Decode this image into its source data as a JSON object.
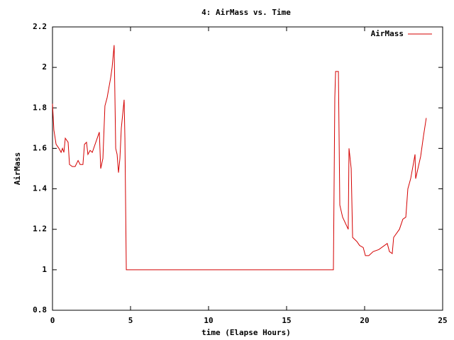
{
  "chart_data": {
    "type": "line",
    "title": "4: AirMass vs. Time",
    "xlabel": "time (Elapse Hours)",
    "ylabel": "AirMass",
    "xlim": [
      0,
      25
    ],
    "xticks": [
      0,
      5,
      10,
      15,
      20,
      25
    ],
    "ylim": [
      0.8,
      2.2
    ],
    "yticks": [
      0.8,
      1,
      1.2,
      1.4,
      1.6,
      1.8,
      2,
      2.2
    ],
    "grid": false,
    "legend": "top-right",
    "series": [
      {
        "name": "AirMass",
        "color": "#d40000",
        "x": [
          0,
          0.09,
          0.23,
          0.41,
          0.55,
          0.64,
          0.73,
          0.82,
          1.0,
          1.09,
          1.27,
          1.45,
          1.64,
          1.77,
          1.95,
          2.05,
          2.18,
          2.27,
          2.41,
          2.55,
          3.0,
          3.09,
          3.23,
          3.36,
          3.5,
          3.73,
          3.82,
          3.95,
          4.05,
          4.14,
          4.23,
          4.32,
          4.41,
          4.59,
          4.64,
          4.73,
          18.0,
          18.09,
          18.14,
          18.32,
          18.41,
          18.59,
          18.95,
          19.0,
          19.14,
          19.23,
          19.5,
          19.68,
          19.91,
          20.05,
          20.27,
          20.55,
          20.91,
          21.45,
          21.59,
          21.77,
          21.86,
          22.23,
          22.45,
          22.64,
          22.77,
          22.95,
          23.14,
          23.23,
          23.27,
          23.59,
          23.77,
          23.95
        ],
        "values": [
          1.82,
          1.69,
          1.62,
          1.6,
          1.58,
          1.6,
          1.58,
          1.65,
          1.63,
          1.52,
          1.51,
          1.51,
          1.54,
          1.52,
          1.52,
          1.62,
          1.63,
          1.57,
          1.59,
          1.58,
          1.68,
          1.5,
          1.55,
          1.81,
          1.85,
          1.95,
          2.0,
          2.11,
          1.6,
          1.57,
          1.48,
          1.55,
          1.7,
          1.84,
          1.65,
          1.0,
          1.0,
          1.85,
          1.98,
          1.98,
          1.32,
          1.26,
          1.2,
          1.6,
          1.5,
          1.16,
          1.14,
          1.12,
          1.11,
          1.07,
          1.07,
          1.09,
          1.1,
          1.13,
          1.09,
          1.08,
          1.16,
          1.2,
          1.25,
          1.26,
          1.4,
          1.45,
          1.53,
          1.57,
          1.45,
          1.56,
          1.66,
          1.75
        ]
      }
    ]
  }
}
